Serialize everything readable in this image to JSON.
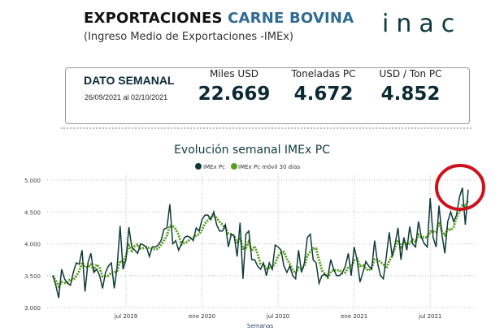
{
  "header": {
    "title_part1": "EXPORTACIONES ",
    "title_part2": "CARNE BOVINA",
    "subtitle": "(Ingreso Medio de Exportaciones -IMEx)",
    "logo": "inac"
  },
  "summary": {
    "label": "DATO SEMANAL",
    "period": "26/09/2021 al 02/10/2021",
    "metrics": [
      {
        "label": "Miles USD",
        "value": "22.669"
      },
      {
        "label": "Toneladas PC",
        "value": "4.672"
      },
      {
        "label": "USD / Ton PC",
        "value": "4.852"
      }
    ]
  },
  "colors": {
    "imex": "#0d3b36",
    "movil": "#5a9e1a",
    "highlight": "#d0101a",
    "title_blue": "#2f6b93"
  },
  "chart_data": {
    "type": "line",
    "title": "Evolución semanal IMEx PC",
    "xlabel": "Semanas",
    "ylabel": "",
    "ylim": [
      3000,
      5000
    ],
    "yticks": [
      "3.000",
      "3.500",
      "4.000",
      "4.500",
      "5.000"
    ],
    "ytick_values": [
      3000,
      3500,
      4000,
      4500,
      5000
    ],
    "xticks": [
      "jul 2019",
      "ene 2020",
      "jul 2020",
      "ene 2021",
      "jul 2021"
    ],
    "xtick_week_index": [
      25,
      51,
      77,
      103,
      129
    ],
    "legend": [
      "IMEx Pc",
      "IMEx Pc móvil 30 días"
    ],
    "legend_position": "top",
    "grid": true,
    "moving_window_weeks": 4,
    "series": [
      {
        "name": "IMEx Pc",
        "values": [
          3500,
          3350,
          3150,
          3600,
          3450,
          3380,
          3350,
          3550,
          3700,
          3680,
          3900,
          3250,
          3700,
          3850,
          3550,
          3600,
          3500,
          3300,
          3550,
          3650,
          3700,
          3300,
          3650,
          4280,
          3600,
          3750,
          4260,
          3950,
          3900,
          3850,
          4000,
          3980,
          3950,
          3800,
          3950,
          3950,
          3980,
          4050,
          4230,
          4250,
          4620,
          4000,
          4050,
          3900,
          4000,
          4100,
          4120,
          4100,
          4050,
          4250,
          4200,
          4380,
          4450,
          4450,
          4380,
          4500,
          4300,
          4200,
          4200,
          4300,
          3950,
          4150,
          4120,
          3800,
          4330,
          3450,
          4150,
          4200,
          3750,
          3750,
          3650,
          3600,
          3700,
          3500,
          3700,
          3600,
          3980,
          3950,
          3900,
          3650,
          3550,
          3650,
          3500,
          3450,
          3900,
          3550,
          3700,
          4100,
          4150,
          3750,
          3700,
          3380,
          3500,
          3520,
          3480,
          3750,
          3600,
          3500,
          3500,
          3550,
          3650,
          3850,
          3500,
          3950,
          3750,
          3400,
          3550,
          3720,
          3650,
          3600,
          4050,
          3700,
          3500,
          3450,
          3800,
          4180,
          3800,
          4000,
          4250,
          3750,
          4100,
          3900,
          4270,
          4000,
          3950,
          4350,
          4100,
          4000,
          3950,
          4720,
          4100,
          3950,
          4600,
          4150,
          3850,
          4350,
          4500,
          4350,
          4450,
          4730,
          4880,
          4300,
          4850
        ]
      }
    ]
  }
}
